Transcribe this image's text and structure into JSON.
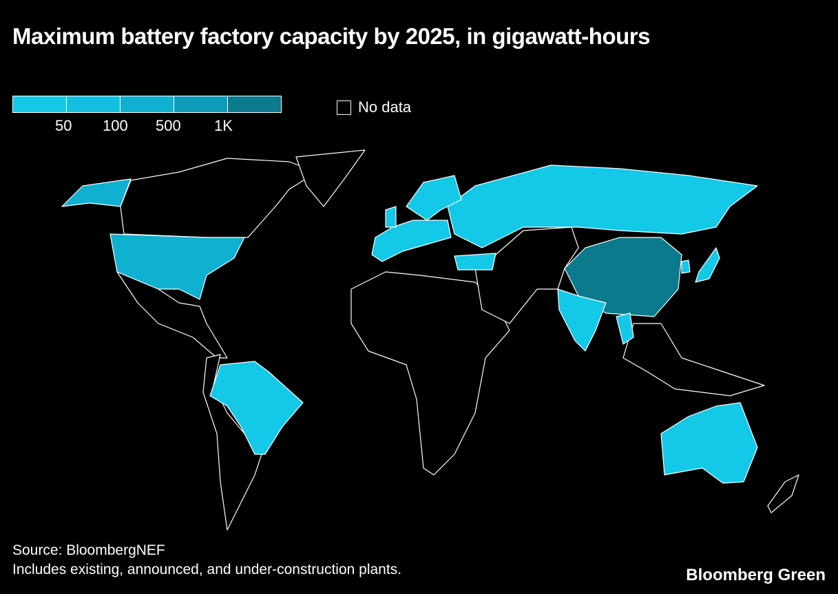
{
  "title": "Maximum battery factory capacity by 2025, in gigawatt-hours",
  "legend": {
    "colors": [
      "#14c8e8",
      "#12bfe0",
      "#0fb0d0",
      "#0d9dba",
      "#0a7a8c"
    ],
    "ticks": [
      "50",
      "100",
      "500",
      "1K"
    ],
    "no_data_label": "No data",
    "no_data_color": "#000000"
  },
  "chart_data": {
    "type": "choropleth",
    "title": "Maximum battery factory capacity by 2025, in gigawatt-hours",
    "legend_ticks": [
      "50",
      "100",
      "500",
      "1K"
    ],
    "countries_by_legend_bin": {
      "China": 4,
      "United States": 2,
      "Russia": 0,
      "Brazil": 0,
      "Australia": 0,
      "India": 0,
      "Turkey": 0,
      "Japan": 0,
      "South Korea": 0,
      "Thailand": 0,
      "Norway": 0,
      "Sweden": 0,
      "Finland": 0,
      "United Kingdom": 0,
      "France": 0,
      "Spain": 0,
      "Portugal": 0,
      "Germany": 0,
      "Poland": 0,
      "Hungary": 0
    }
  },
  "source": "Source: BloombergNEF",
  "note": "Includes existing, announced, and under-construction plants.",
  "brand": "Bloomberg Green"
}
